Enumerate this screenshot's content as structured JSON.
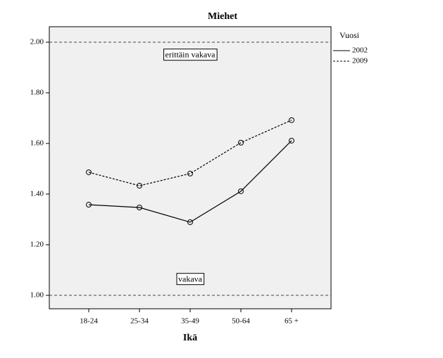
{
  "chart_data": {
    "type": "line",
    "title": "Miehet",
    "x_label": "Ikä",
    "categories": [
      "18-24",
      "25-34",
      "35-49",
      "50-64",
      "65 +"
    ],
    "series": [
      {
        "name": "2002",
        "color": "#000000",
        "dash": "solid",
        "values": [
          1.358,
          1.347,
          1.289,
          1.411,
          1.611
        ]
      },
      {
        "name": "2009",
        "color": "#000000",
        "dash": "dashed",
        "values": [
          1.486,
          1.433,
          1.481,
          1.603,
          1.692
        ]
      }
    ],
    "legend_title": "Vuosi",
    "legend": "outside-top-right",
    "ylim": [
      0.947,
      2.061
    ],
    "yticks": [
      {
        "value": 1,
        "label": "1.00"
      },
      {
        "value": 1.2,
        "label": "1.20"
      },
      {
        "value": 1.4,
        "label": "1.40"
      },
      {
        "value": 1.6,
        "label": "1.60"
      },
      {
        "value": 1.8,
        "label": "1.80"
      },
      {
        "value": 2,
        "label": "2.00"
      }
    ],
    "reference_lines": [
      1,
      2
    ],
    "annotations": [
      "erittäin vakava",
      "vakava"
    ]
  }
}
